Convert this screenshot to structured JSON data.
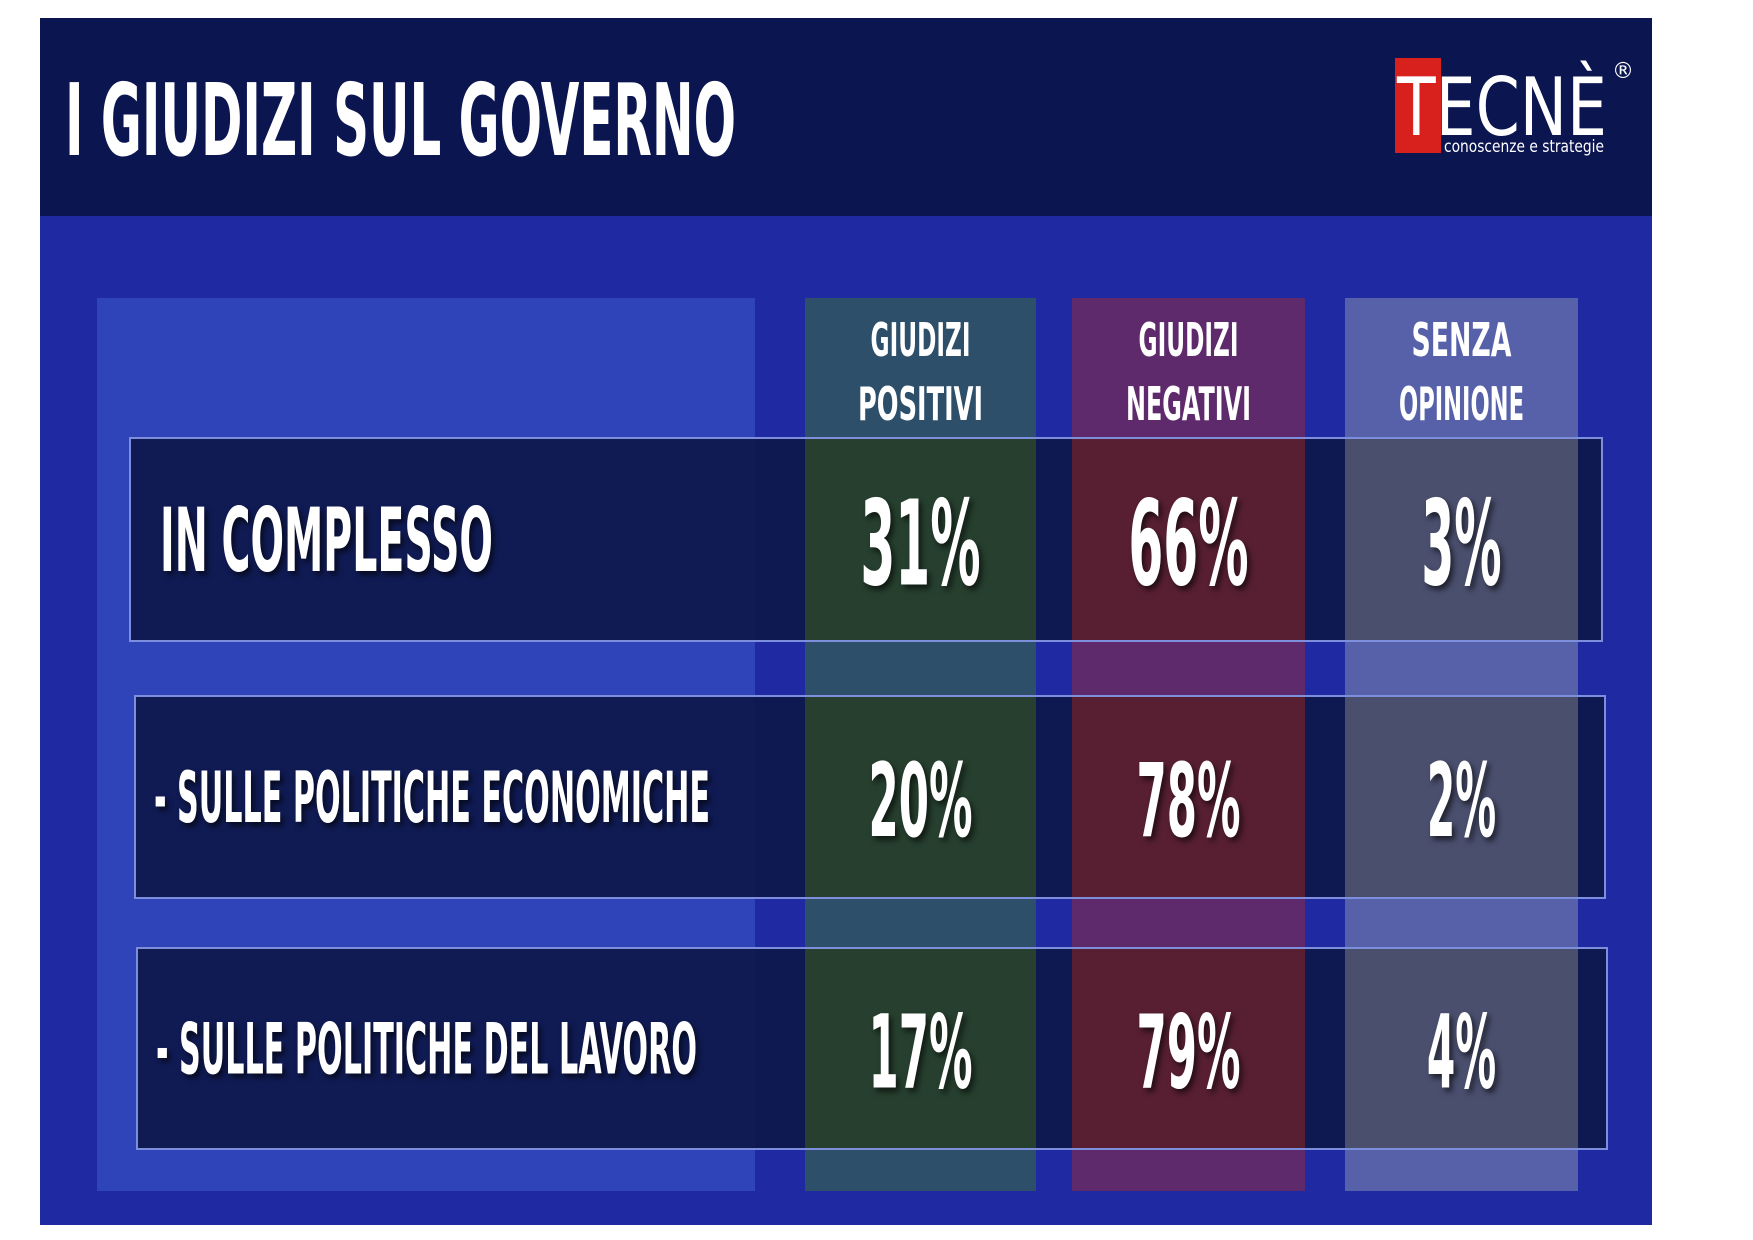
{
  "header": {
    "title": "I GIUDIZI SUL GOVERNO",
    "logo": {
      "name": "TECNÈ",
      "mark": "®",
      "tagline": "conoscenze e strategie"
    }
  },
  "table": {
    "columns": [
      [
        "GIUDIZI",
        "POSITIVI"
      ],
      [
        "GIUDIZI",
        "NEGATIVI"
      ],
      [
        "SENZA",
        "OPINIONE"
      ]
    ],
    "rows": [
      {
        "label": "IN COMPLESSO",
        "values": [
          "31%",
          "66%",
          "3%"
        ]
      },
      {
        "label": "- SULLE POLITICHE ECONOMICHE",
        "values": [
          "20%",
          "78%",
          "2%"
        ]
      },
      {
        "label": "- SULLE POLITICHE DEL LAVORO",
        "values": [
          "17%",
          "79%",
          "4%"
        ]
      }
    ]
  }
}
